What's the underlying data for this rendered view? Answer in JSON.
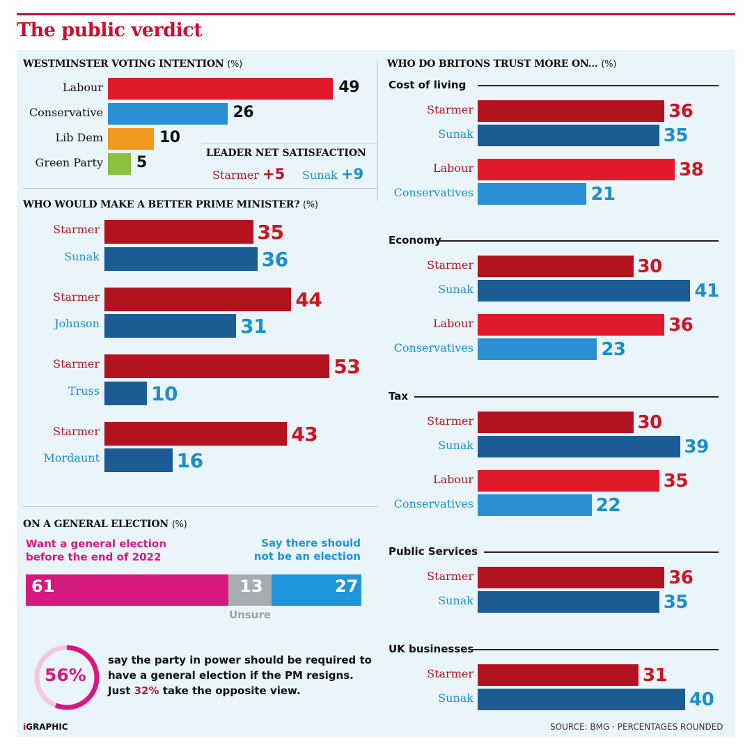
{
  "title": "The public verdict",
  "colors": {
    "labour": "#e01a2b",
    "conservative": "#2a8fd4",
    "libdem": "#f29a1e",
    "green": "#8cbf3f",
    "starmer": "#b3131f",
    "leader_blue": "#1c5c94",
    "pink": "#d6197f",
    "grey": "#9aa0a6",
    "red_text": "#d0141f",
    "blue_text": "#1b8fc9"
  },
  "satisfaction": {
    "title": "LEADER NET SATISFACTION",
    "starmer_label": "Starmer",
    "starmer_value": "+5",
    "sunak_label": "Sunak",
    "sunak_value": "+9"
  },
  "general_election": {
    "title": "ON A GENERAL ELECTION",
    "unit": "(%)",
    "want_label": "Want a general election\nbefore the end of 2022",
    "not_label": "Say there should\nnot be an election",
    "unsure_label": "Unsure",
    "segments": [
      {
        "name": "Want a general election before the end of 2022",
        "value": 61,
        "color": "#d6197f"
      },
      {
        "name": "Unsure",
        "value": 13,
        "color": "#a7acb1"
      },
      {
        "name": "Say there should not be an election",
        "value": 27,
        "color": "#1f95dc"
      }
    ]
  },
  "callout": {
    "percent": "56%",
    "percent_value": 56,
    "text_before": "say the party in power should be required to have a general election if the PM resigns. Just ",
    "text_bold": "32%",
    "text_after": " take the opposite view."
  },
  "footer": {
    "brand_prefix": "i",
    "brand": "GRAPHIC",
    "source": "SOURCE: BMG · PERCENTAGES ROUNDED"
  },
  "chart_data": [
    {
      "type": "bar",
      "title": "WESTMINSTER VOTING INTENTION",
      "unit": "(%)",
      "categories": [
        "Labour",
        "Conservative",
        "Lib Dem",
        "Green Party"
      ],
      "values": [
        49,
        26,
        10,
        5
      ],
      "colors": [
        "#e01a2b",
        "#2a8fd4",
        "#f29a1e",
        "#8cbf3f"
      ]
    },
    {
      "type": "bar",
      "title": "WHO WOULD MAKE A BETTER PRIME MINISTER?",
      "unit": "(%)",
      "pairs": [
        {
          "a": "Starmer",
          "a_value": 35,
          "b": "Sunak",
          "b_value": 36
        },
        {
          "a": "Starmer",
          "a_value": 44,
          "b": "Johnson",
          "b_value": 31
        },
        {
          "a": "Starmer",
          "a_value": 53,
          "b": "Truss",
          "b_value": 10
        },
        {
          "a": "Starmer",
          "a_value": 43,
          "b": "Mordaunt",
          "b_value": 16
        }
      ]
    },
    {
      "type": "bar",
      "title": "WHO DO BRITONS TRUST MORE ON...",
      "unit": "(%)",
      "groups": [
        {
          "topic": "Cost of living",
          "rows": [
            {
              "label": "Starmer",
              "value": 36
            },
            {
              "label": "Sunak",
              "value": 35
            },
            {
              "label": "Labour",
              "value": 38
            },
            {
              "label": "Conservatives",
              "value": 21
            }
          ]
        },
        {
          "topic": "Economy",
          "rows": [
            {
              "label": "Starmer",
              "value": 30
            },
            {
              "label": "Sunak",
              "value": 41
            },
            {
              "label": "Labour",
              "value": 36
            },
            {
              "label": "Conservatives",
              "value": 23
            }
          ]
        },
        {
          "topic": "Tax",
          "rows": [
            {
              "label": "Starmer",
              "value": 30
            },
            {
              "label": "Sunak",
              "value": 39
            },
            {
              "label": "Labour",
              "value": 35
            },
            {
              "label": "Conservatives",
              "value": 22
            }
          ]
        },
        {
          "topic": "Public Services",
          "rows": [
            {
              "label": "Starmer",
              "value": 36
            },
            {
              "label": "Sunak",
              "value": 35
            }
          ]
        },
        {
          "topic": "UK businesses",
          "rows": [
            {
              "label": "Starmer",
              "value": 31
            },
            {
              "label": "Sunak",
              "value": 40
            }
          ]
        }
      ]
    }
  ]
}
